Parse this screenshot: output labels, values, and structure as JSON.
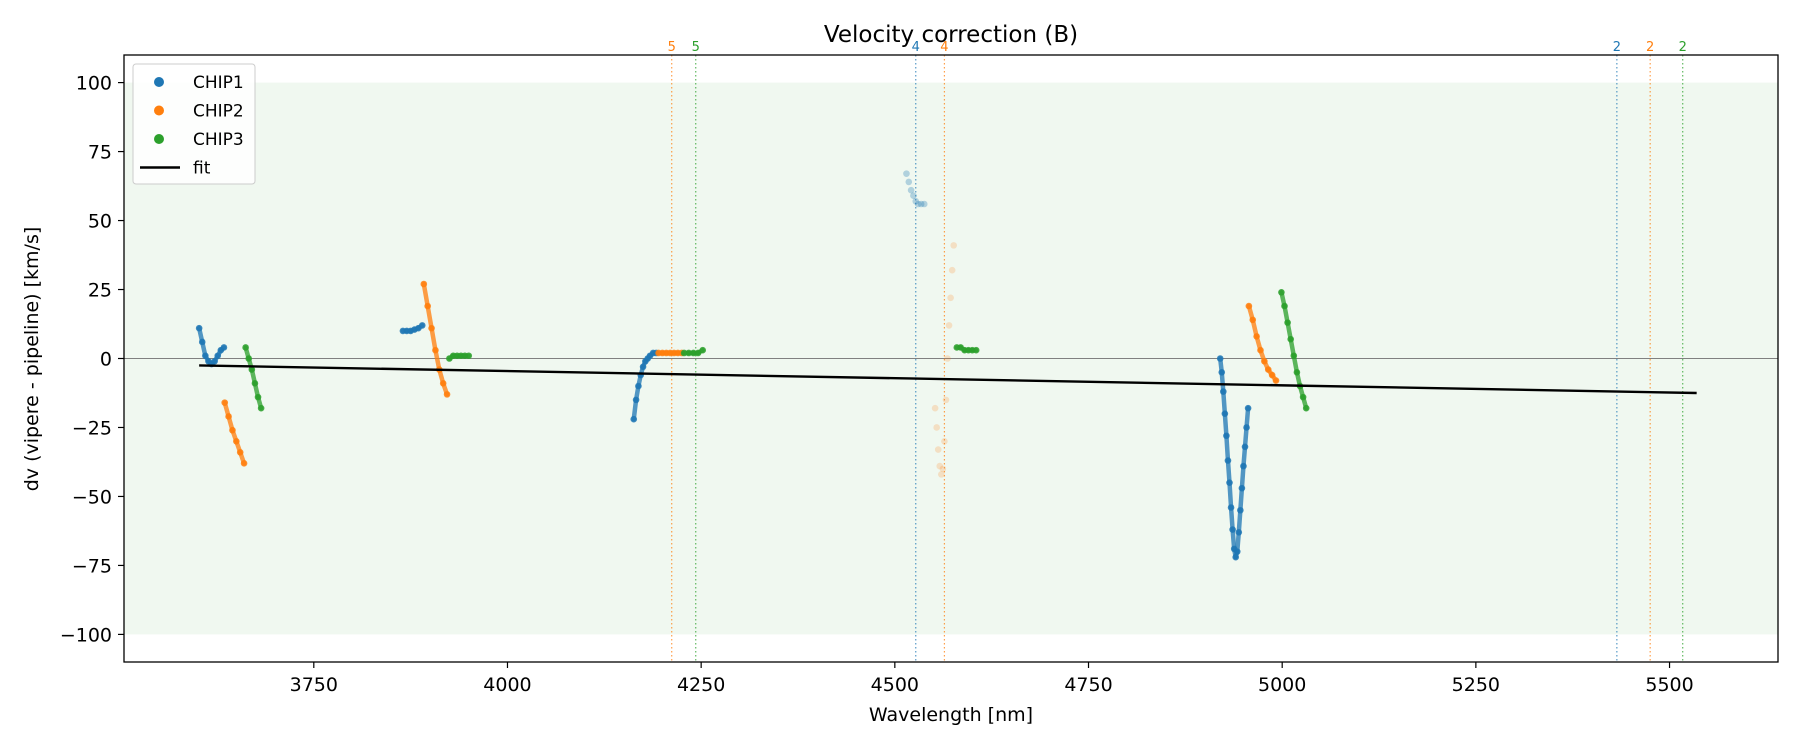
{
  "chart_data": {
    "type": "scatter",
    "title": "Velocity correction (B)",
    "xlabel": "Wavelength [nm]",
    "ylabel": "dv (vipere - pipeline) [km/s]",
    "xlim": [
      3505,
      5640
    ],
    "ylim": [
      -110,
      110
    ],
    "xticks": [
      3750,
      4000,
      4250,
      4500,
      4750,
      5000,
      5250,
      5500
    ],
    "yticks": [
      -100,
      -75,
      -50,
      -25,
      0,
      25,
      50,
      75,
      100
    ],
    "tick_labels_x": [
      "3750",
      "4000",
      "4250",
      "4500",
      "4750",
      "5000",
      "5250",
      "5500"
    ],
    "tick_labels_y": [
      "−100",
      "−75",
      "−50",
      "−25",
      "0",
      "25",
      "50",
      "75",
      "100"
    ],
    "shaded_band": {
      "ymin": -100,
      "ymax": 100,
      "color": "#2ca02c"
    },
    "zero_line": 0,
    "colors": {
      "CHIP1": "#1f77b4",
      "CHIP2": "#ff7f0e",
      "CHIP3": "#2ca02c",
      "fit": "#000000"
    },
    "legend": {
      "placement": "top-left",
      "entries": [
        {
          "label": "CHIP1",
          "kind": "marker",
          "series": "CHIP1"
        },
        {
          "label": "CHIP2",
          "kind": "marker",
          "series": "CHIP2"
        },
        {
          "label": "CHIP3",
          "kind": "marker",
          "series": "CHIP3"
        },
        {
          "label": "fit",
          "kind": "line",
          "series": "fit"
        }
      ]
    },
    "fit": {
      "x": [
        3602,
        5535
      ],
      "y": [
        -2.5,
        -12.5
      ]
    },
    "vertical_markers": [
      {
        "x": 4212,
        "label": "5",
        "series": "CHIP2"
      },
      {
        "x": 4243,
        "label": "5",
        "series": "CHIP3"
      },
      {
        "x": 4527,
        "label": "4",
        "series": "CHIP1"
      },
      {
        "x": 4564,
        "label": "4",
        "series": "CHIP2"
      },
      {
        "x": 5432,
        "label": "2",
        "series": "CHIP1"
      },
      {
        "x": 5475,
        "label": "2",
        "series": "CHIP2"
      },
      {
        "x": 5517,
        "label": "2",
        "series": "CHIP3"
      }
    ],
    "series": [
      {
        "name": "CHIP1",
        "segment": 1,
        "alpha": 0.85,
        "x": [
          3602,
          3606,
          3610,
          3614,
          3618,
          3622,
          3626,
          3630,
          3634
        ],
        "y": [
          11,
          6,
          1,
          -1,
          -2,
          -1,
          1,
          3,
          4
        ]
      },
      {
        "name": "CHIP2",
        "segment": 1,
        "alpha": 0.85,
        "x": [
          3635,
          3640,
          3645,
          3650,
          3655,
          3660
        ],
        "y": [
          -16,
          -21,
          -26,
          -30,
          -34,
          -38
        ]
      },
      {
        "name": "CHIP3",
        "segment": 1,
        "alpha": 0.85,
        "x": [
          3662,
          3666,
          3670,
          3674,
          3678,
          3682
        ],
        "y": [
          4,
          0,
          -4,
          -9,
          -14,
          -18
        ]
      },
      {
        "name": "CHIP1",
        "segment": 2,
        "alpha": 0.85,
        "x": [
          3865,
          3870,
          3875,
          3880,
          3885,
          3890
        ],
        "y": [
          10,
          10,
          10,
          10.5,
          11,
          12
        ]
      },
      {
        "name": "CHIP2",
        "segment": 2,
        "alpha": 0.85,
        "x": [
          3892,
          3897,
          3902,
          3907,
          3912,
          3917,
          3922
        ],
        "y": [
          27,
          19,
          11,
          3,
          -4,
          -9,
          -13
        ]
      },
      {
        "name": "CHIP3",
        "segment": 2,
        "alpha": 0.85,
        "x": [
          3925,
          3930,
          3935,
          3940,
          3945,
          3950
        ],
        "y": [
          0,
          1,
          1,
          1,
          1,
          1
        ]
      },
      {
        "name": "CHIP1",
        "segment": 3,
        "alpha": 0.85,
        "x": [
          4163,
          4166,
          4169,
          4172,
          4175,
          4178,
          4181,
          4184,
          4188,
          4192
        ],
        "y": [
          -22,
          -15,
          -10,
          -6,
          -3,
          -1,
          0,
          1,
          2,
          2
        ]
      },
      {
        "name": "CHIP2",
        "segment": 3,
        "alpha": 0.85,
        "x": [
          4195,
          4200,
          4205,
          4210,
          4215,
          4220,
          4225
        ],
        "y": [
          2,
          2,
          2,
          2,
          2,
          2,
          2
        ]
      },
      {
        "name": "CHIP3",
        "segment": 3,
        "alpha": 0.85,
        "x": [
          4228,
          4234,
          4240,
          4246,
          4252
        ],
        "y": [
          2,
          2,
          2,
          2,
          3
        ]
      },
      {
        "name": "CHIP1",
        "segment": 4,
        "alpha": 0.3,
        "x": [
          4515,
          4518,
          4521,
          4524,
          4527,
          4530,
          4534,
          4538
        ],
        "y": [
          67,
          64,
          61,
          59,
          57,
          56,
          56,
          56
        ]
      },
      {
        "name": "CHIP2",
        "segment": 4,
        "alpha": 0.2,
        "x": [
          4552,
          4554,
          4556,
          4558,
          4560,
          4562,
          4564,
          4566,
          4568,
          4570,
          4572,
          4574,
          4576
        ],
        "y": [
          -18,
          -25,
          -33,
          -39,
          -42,
          -40,
          -30,
          -15,
          0,
          12,
          22,
          32,
          41
        ]
      },
      {
        "name": "CHIP3",
        "segment": 4,
        "alpha": 0.85,
        "x": [
          4580,
          4585,
          4590,
          4595,
          4600,
          4605
        ],
        "y": [
          4,
          4,
          3,
          3,
          3,
          3
        ]
      },
      {
        "name": "CHIP1",
        "segment": 5,
        "alpha": 0.85,
        "x": [
          4920,
          4922,
          4924,
          4926,
          4928,
          4930,
          4932,
          4934,
          4936,
          4938,
          4940,
          4942,
          4944,
          4946,
          4948,
          4950,
          4952,
          4954,
          4956
        ],
        "y": [
          0,
          -5,
          -12,
          -20,
          -28,
          -37,
          -45,
          -54,
          -62,
          -69,
          -72,
          -70,
          -63,
          -55,
          -47,
          -39,
          -32,
          -25,
          -18
        ]
      },
      {
        "name": "CHIP2",
        "segment": 5,
        "alpha": 0.85,
        "x": [
          4957,
          4962,
          4967,
          4972,
          4977,
          4982,
          4987,
          4992
        ],
        "y": [
          19,
          14,
          8,
          3,
          -1,
          -4,
          -6,
          -8
        ]
      },
      {
        "name": "CHIP3",
        "segment": 5,
        "alpha": 0.85,
        "x": [
          4999,
          5003,
          5007,
          5011,
          5015,
          5019,
          5023,
          5027,
          5031
        ],
        "y": [
          24,
          19,
          13,
          7,
          1,
          -5,
          -10,
          -14,
          -18
        ]
      }
    ]
  }
}
